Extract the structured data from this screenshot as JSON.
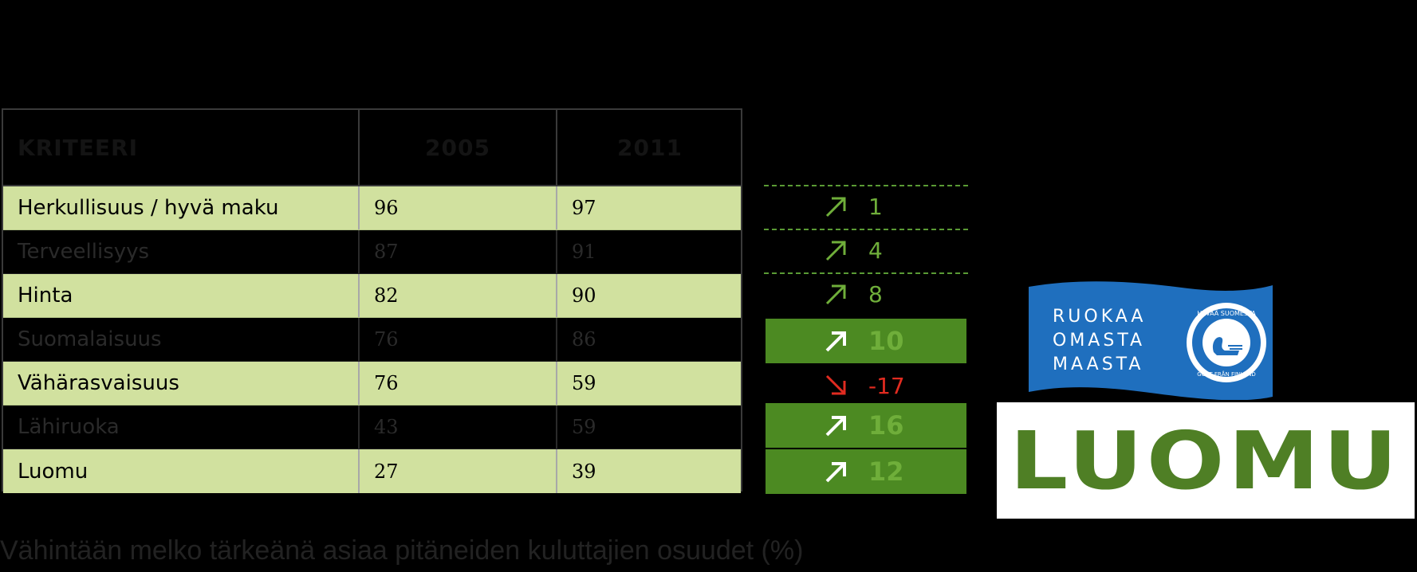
{
  "table": {
    "headers": [
      "KRITEERI",
      "2005",
      "2011"
    ],
    "rows": [
      {
        "criterion": "Herkullisuus / hyvä maku",
        "y2005": "96",
        "y2011": "97"
      },
      {
        "criterion": "Terveellisyys",
        "y2005": "87",
        "y2011": "91"
      },
      {
        "criterion": "Hinta",
        "y2005": "82",
        "y2011": "90"
      },
      {
        "criterion": "Suomalaisuus",
        "y2005": "76",
        "y2011": "86"
      },
      {
        "criterion": "Vähärasvaisuus",
        "y2005": "76",
        "y2011": "59"
      },
      {
        "criterion": "Lähiruoka",
        "y2005": "43",
        "y2011": "59"
      },
      {
        "criterion": "Luomu",
        "y2005": "27",
        "y2011": "39"
      }
    ]
  },
  "changes": [
    {
      "value": "1",
      "direction": "up",
      "highlighted": false
    },
    {
      "value": "4",
      "direction": "up",
      "highlighted": false
    },
    {
      "value": "8",
      "direction": "up",
      "highlighted": false
    },
    {
      "value": "10",
      "direction": "up",
      "highlighted": true
    },
    {
      "value": "-17",
      "direction": "down",
      "highlighted": false
    },
    {
      "value": "16",
      "direction": "up",
      "highlighted": true
    },
    {
      "value": "12",
      "direction": "up",
      "highlighted": true
    }
  ],
  "logos": {
    "flag_lines": [
      "RUOKAA",
      "OMASTA",
      "MAASTA"
    ],
    "seal_top": "HYVÄÄ SUOMESTA",
    "seal_bottom": "GOTT FRÅN FINLAND",
    "luomu": "LUOMU"
  },
  "caption": "Vähintään melko tärkeänä asiaa pitäneiden kuluttajien osuudet (%)",
  "colors": {
    "light_row": "#d1e19f",
    "highlight_green": "#4c8a22",
    "up_arrow": "#6fae3a",
    "down_arrow": "#e12b20",
    "flag_blue": "#1f6fbe",
    "luomu_green": "#4f7f25"
  }
}
